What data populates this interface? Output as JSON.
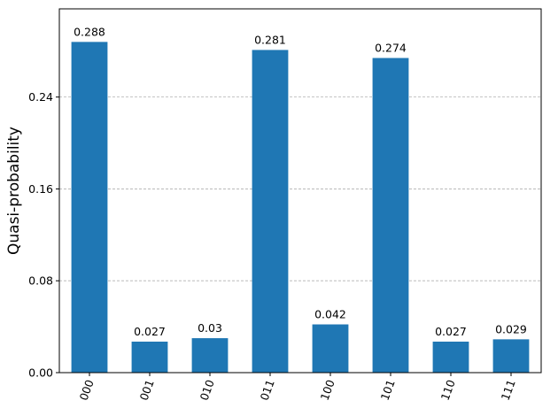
{
  "chart_data": {
    "type": "bar",
    "title": "",
    "xlabel": "",
    "ylabel": "Quasi-probability",
    "categories": [
      "000",
      "001",
      "010",
      "011",
      "100",
      "101",
      "110",
      "111"
    ],
    "values": [
      0.288,
      0.027,
      0.03,
      0.281,
      0.042,
      0.274,
      0.027,
      0.029
    ],
    "value_labels": [
      "0.288",
      "0.027",
      "0.03",
      "0.281",
      "0.042",
      "0.274",
      "0.027",
      "0.029"
    ],
    "yticks": [
      0.0,
      0.08,
      0.16,
      0.24
    ],
    "ytick_labels": [
      "0.00",
      "0.08",
      "0.16",
      "0.24"
    ],
    "ylim": [
      0.0,
      0.3168
    ],
    "grid": "y-dashed",
    "bar_color": "#1f77b4",
    "grid_color": "#b0b0b0",
    "x_tick_rotation": 70
  }
}
